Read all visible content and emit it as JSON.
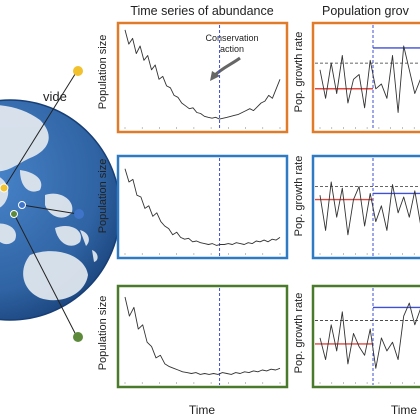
{
  "globe": {
    "label": "vide",
    "colors": {
      "ocean": "#2f63a3",
      "ocean_dark": "#173e75",
      "land": "#dfe6ee"
    },
    "markers": [
      {
        "id": "site-1",
        "color": "#f2c12e"
      },
      {
        "id": "site-2",
        "color": "#3f74c9"
      },
      {
        "id": "site-3",
        "color": "#5c8a3a"
      }
    ]
  },
  "headers": {
    "abundance": "Time series of abundance",
    "growth": "Population grov"
  },
  "axis_labels": {
    "population_size": "Population size",
    "growth_rate": "Pop. growth rate",
    "time": "Time"
  },
  "annotation": {
    "line1": "Conservation",
    "line2": "action"
  },
  "colors": {
    "orange": "#e07b2a",
    "blue": "#2f7ac4",
    "green": "#4a7a2c",
    "series": "#333333",
    "intervention_line": "#3f4fd6",
    "mean_before": "#e0473f",
    "mean_after": "#3f4fd6",
    "reference_line": "#333333"
  },
  "chart_data": [
    {
      "type": "line",
      "panel": "abundance-1",
      "frame_color": "#e07b2a",
      "ylabel": "Population size",
      "intervention_t": 0.61,
      "values": [
        0.97,
        0.82,
        0.88,
        0.72,
        0.8,
        0.65,
        0.7,
        0.55,
        0.6,
        0.45,
        0.48,
        0.38,
        0.36,
        0.28,
        0.26,
        0.2,
        0.17,
        0.14,
        0.15,
        0.1,
        0.09,
        0.06,
        0.05,
        0.04,
        0.05,
        0.03,
        0.04,
        0.05,
        0.06,
        0.07,
        0.08,
        0.1,
        0.12,
        0.14,
        0.12,
        0.16,
        0.2,
        0.22,
        0.28,
        0.25,
        0.35,
        0.45
      ]
    },
    {
      "type": "line",
      "panel": "growth-1",
      "frame_color": "#e07b2a",
      "ylabel": "Pop. growth rate",
      "intervention_t": 0.5,
      "values": [
        0.55,
        0.25,
        0.62,
        0.3,
        0.7,
        0.2,
        0.45,
        0.5,
        0.15,
        0.65,
        0.35,
        0.4,
        0.25,
        0.7,
        0.1,
        0.8,
        0.55,
        0.3,
        0.45,
        0.6
      ],
      "mean_before": 0.35,
      "mean_after": 0.78,
      "reference": 0.62
    },
    {
      "type": "line",
      "panel": "abundance-2",
      "frame_color": "#2f7ac4",
      "ylabel": "Population size",
      "intervention_t": 0.61,
      "values": [
        0.9,
        0.75,
        0.78,
        0.6,
        0.58,
        0.45,
        0.48,
        0.36,
        0.4,
        0.3,
        0.25,
        0.22,
        0.15,
        0.18,
        0.12,
        0.1,
        0.11,
        0.07,
        0.08,
        0.06,
        0.05,
        0.04,
        0.05,
        0.03,
        0.04,
        0.04,
        0.05,
        0.04,
        0.06,
        0.05,
        0.04,
        0.06,
        0.05,
        0.08,
        0.07,
        0.09,
        0.07,
        0.1,
        0.09,
        0.12
      ]
    },
    {
      "type": "line",
      "panel": "growth-2",
      "frame_color": "#2f7ac4",
      "ylabel": "Pop. growth rate",
      "intervention_t": 0.5,
      "values": [
        0.6,
        0.2,
        0.75,
        0.35,
        0.68,
        0.15,
        0.55,
        0.7,
        0.25,
        0.62,
        0.3,
        0.48,
        0.2,
        0.72,
        0.4,
        0.58,
        0.35,
        0.65,
        0.28,
        0.55
      ],
      "mean_before": 0.55,
      "mean_after": 0.62,
      "reference": 0.7
    },
    {
      "type": "line",
      "panel": "abundance-3",
      "frame_color": "#4a7a2c",
      "ylabel": "Population size",
      "intervention_t": 0.61,
      "values": [
        0.92,
        0.7,
        0.8,
        0.55,
        0.6,
        0.4,
        0.35,
        0.22,
        0.25,
        0.15,
        0.12,
        0.1,
        0.08,
        0.06,
        0.05,
        0.04,
        0.05,
        0.03,
        0.04,
        0.03,
        0.04,
        0.03,
        0.05,
        0.04,
        0.03,
        0.05,
        0.04,
        0.06,
        0.05,
        0.07,
        0.06,
        0.08,
        0.07,
        0.09,
        0.08,
        0.1
      ]
    },
    {
      "type": "line",
      "panel": "growth-3",
      "frame_color": "#4a7a2c",
      "ylabel": "Pop. growth rate",
      "intervention_t": 0.5,
      "values": [
        0.45,
        0.2,
        0.6,
        0.3,
        0.75,
        0.15,
        0.5,
        0.35,
        0.25,
        0.55,
        0.1,
        0.45,
        0.3,
        0.4,
        0.2,
        0.7,
        0.85,
        0.6,
        0.78,
        0.7
      ],
      "mean_before": 0.38,
      "mean_after": 0.8,
      "reference": 0.65
    }
  ]
}
